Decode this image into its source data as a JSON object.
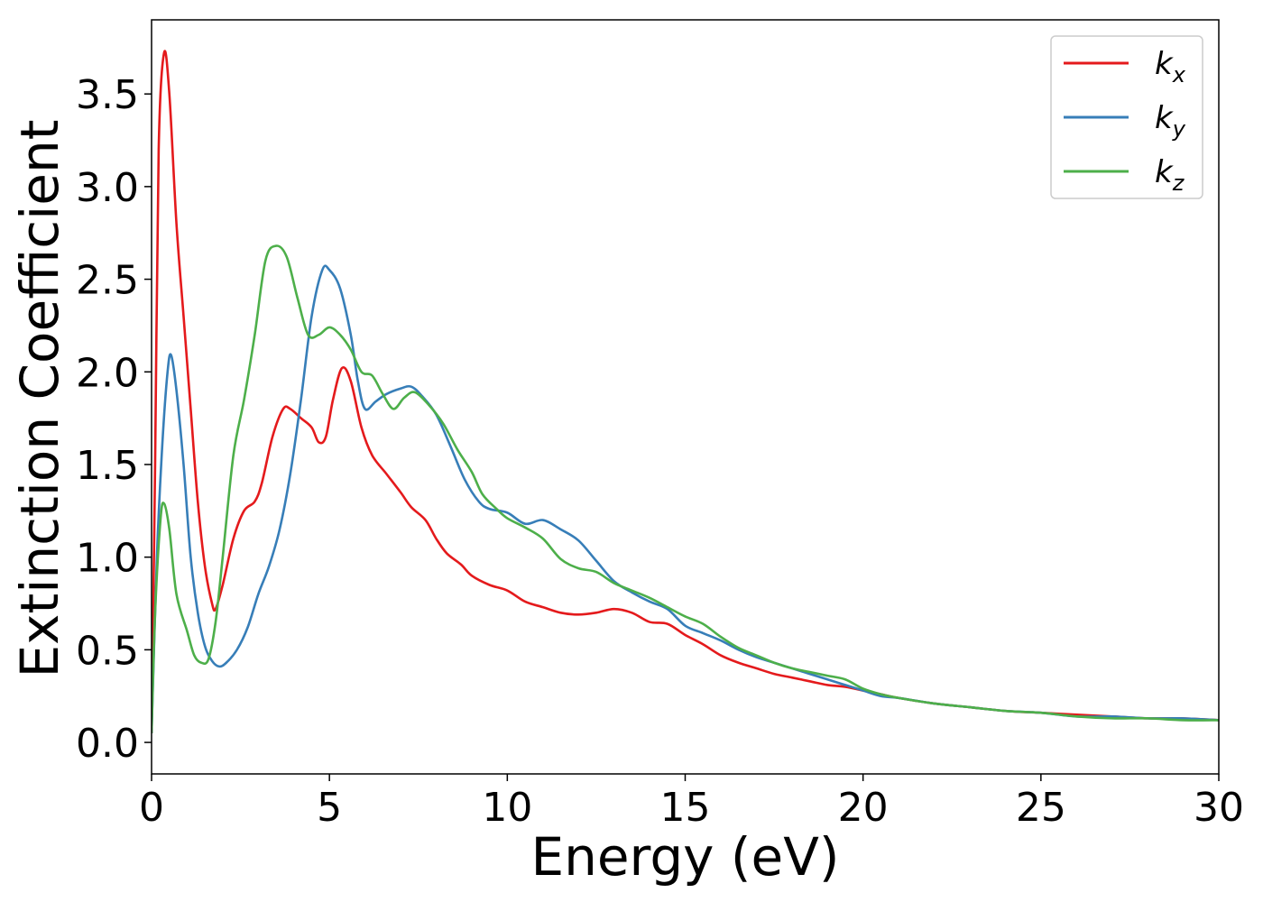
{
  "chart_data": {
    "type": "line",
    "xlabel": "Energy (eV)",
    "ylabel": "Extinction Coefficient",
    "xlim": [
      0,
      30
    ],
    "ylim": [
      -0.17,
      3.9
    ],
    "xticks": [
      0,
      5,
      10,
      15,
      20,
      25,
      30
    ],
    "yticks": [
      0.0,
      0.5,
      1.0,
      1.5,
      2.0,
      2.5,
      3.0,
      3.5
    ],
    "xtick_labels": [
      "0",
      "5",
      "10",
      "15",
      "20",
      "25",
      "30"
    ],
    "ytick_labels": [
      "0.0",
      "0.5",
      "1.0",
      "1.5",
      "2.0",
      "2.5",
      "3.0",
      "3.5"
    ],
    "grid": false,
    "legend_position": "top-right",
    "series": [
      {
        "name": "k_x",
        "label_base": "k",
        "label_sub": "x",
        "color": "#e41a1c",
        "points": [
          [
            0,
            0.05
          ],
          [
            0.1,
            1.5
          ],
          [
            0.2,
            3.2
          ],
          [
            0.35,
            3.72
          ],
          [
            0.5,
            3.5
          ],
          [
            0.7,
            2.8
          ],
          [
            0.9,
            2.3
          ],
          [
            1.1,
            1.8
          ],
          [
            1.3,
            1.3
          ],
          [
            1.5,
            0.95
          ],
          [
            1.7,
            0.75
          ],
          [
            1.8,
            0.72
          ],
          [
            2.0,
            0.85
          ],
          [
            2.3,
            1.1
          ],
          [
            2.6,
            1.25
          ],
          [
            2.9,
            1.3
          ],
          [
            3.1,
            1.4
          ],
          [
            3.4,
            1.65
          ],
          [
            3.7,
            1.8
          ],
          [
            3.9,
            1.8
          ],
          [
            4.2,
            1.75
          ],
          [
            4.5,
            1.7
          ],
          [
            4.7,
            1.62
          ],
          [
            4.9,
            1.65
          ],
          [
            5.1,
            1.85
          ],
          [
            5.35,
            2.02
          ],
          [
            5.6,
            1.95
          ],
          [
            5.9,
            1.7
          ],
          [
            6.2,
            1.55
          ],
          [
            6.6,
            1.45
          ],
          [
            7.0,
            1.35
          ],
          [
            7.3,
            1.27
          ],
          [
            7.7,
            1.2
          ],
          [
            8.0,
            1.1
          ],
          [
            8.3,
            1.02
          ],
          [
            8.7,
            0.96
          ],
          [
            9.0,
            0.9
          ],
          [
            9.5,
            0.85
          ],
          [
            10.0,
            0.82
          ],
          [
            10.5,
            0.76
          ],
          [
            11.0,
            0.73
          ],
          [
            11.5,
            0.7
          ],
          [
            12.0,
            0.69
          ],
          [
            12.5,
            0.7
          ],
          [
            13.0,
            0.72
          ],
          [
            13.5,
            0.7
          ],
          [
            14.0,
            0.65
          ],
          [
            14.5,
            0.64
          ],
          [
            15.0,
            0.58
          ],
          [
            15.5,
            0.53
          ],
          [
            16.0,
            0.47
          ],
          [
            16.5,
            0.43
          ],
          [
            17.0,
            0.4
          ],
          [
            17.5,
            0.37
          ],
          [
            18.0,
            0.35
          ],
          [
            18.5,
            0.33
          ],
          [
            19.0,
            0.31
          ],
          [
            19.5,
            0.3
          ],
          [
            20.0,
            0.28
          ],
          [
            20.5,
            0.26
          ],
          [
            21.0,
            0.24
          ],
          [
            22.0,
            0.21
          ],
          [
            23.0,
            0.19
          ],
          [
            24.0,
            0.17
          ],
          [
            25.0,
            0.16
          ],
          [
            26.0,
            0.15
          ],
          [
            27.0,
            0.14
          ],
          [
            28.0,
            0.13
          ],
          [
            29.0,
            0.13
          ],
          [
            30.0,
            0.12
          ]
        ]
      },
      {
        "name": "k_y",
        "label_base": "k",
        "label_sub": "y",
        "color": "#377eb8",
        "points": [
          [
            0,
            0.05
          ],
          [
            0.15,
            1.0
          ],
          [
            0.3,
            1.6
          ],
          [
            0.45,
            2.0
          ],
          [
            0.55,
            2.09
          ],
          [
            0.7,
            1.9
          ],
          [
            0.9,
            1.5
          ],
          [
            1.1,
            1.0
          ],
          [
            1.3,
            0.7
          ],
          [
            1.5,
            0.52
          ],
          [
            1.7,
            0.44
          ],
          [
            1.9,
            0.41
          ],
          [
            2.1,
            0.43
          ],
          [
            2.4,
            0.5
          ],
          [
            2.7,
            0.62
          ],
          [
            3.0,
            0.8
          ],
          [
            3.3,
            0.95
          ],
          [
            3.6,
            1.15
          ],
          [
            3.9,
            1.45
          ],
          [
            4.2,
            1.85
          ],
          [
            4.5,
            2.3
          ],
          [
            4.8,
            2.55
          ],
          [
            5.0,
            2.55
          ],
          [
            5.3,
            2.45
          ],
          [
            5.6,
            2.2
          ],
          [
            5.8,
            1.95
          ],
          [
            6.0,
            1.8
          ],
          [
            6.3,
            1.84
          ],
          [
            6.6,
            1.88
          ],
          [
            7.0,
            1.91
          ],
          [
            7.3,
            1.92
          ],
          [
            7.6,
            1.87
          ],
          [
            8.0,
            1.77
          ],
          [
            8.4,
            1.6
          ],
          [
            8.8,
            1.42
          ],
          [
            9.2,
            1.3
          ],
          [
            9.5,
            1.26
          ],
          [
            10.0,
            1.24
          ],
          [
            10.5,
            1.18
          ],
          [
            11.0,
            1.2
          ],
          [
            11.5,
            1.15
          ],
          [
            12.0,
            1.09
          ],
          [
            12.5,
            0.98
          ],
          [
            13.0,
            0.87
          ],
          [
            13.5,
            0.81
          ],
          [
            14.0,
            0.76
          ],
          [
            14.5,
            0.72
          ],
          [
            15.0,
            0.63
          ],
          [
            15.5,
            0.59
          ],
          [
            16.0,
            0.55
          ],
          [
            16.5,
            0.5
          ],
          [
            17.0,
            0.46
          ],
          [
            17.5,
            0.43
          ],
          [
            18.0,
            0.4
          ],
          [
            18.5,
            0.37
          ],
          [
            19.0,
            0.34
          ],
          [
            19.5,
            0.31
          ],
          [
            20.0,
            0.28
          ],
          [
            20.5,
            0.25
          ],
          [
            21.0,
            0.24
          ],
          [
            22.0,
            0.21
          ],
          [
            23.0,
            0.19
          ],
          [
            24.0,
            0.17
          ],
          [
            25.0,
            0.16
          ],
          [
            26.0,
            0.14
          ],
          [
            27.0,
            0.14
          ],
          [
            28.0,
            0.13
          ],
          [
            29.0,
            0.13
          ],
          [
            30.0,
            0.12
          ]
        ]
      },
      {
        "name": "k_z",
        "label_base": "k",
        "label_sub": "z",
        "color": "#4daf4a",
        "points": [
          [
            0,
            0.05
          ],
          [
            0.1,
            0.7
          ],
          [
            0.25,
            1.2
          ],
          [
            0.35,
            1.29
          ],
          [
            0.5,
            1.15
          ],
          [
            0.7,
            0.8
          ],
          [
            1.0,
            0.6
          ],
          [
            1.2,
            0.47
          ],
          [
            1.4,
            0.43
          ],
          [
            1.6,
            0.45
          ],
          [
            1.8,
            0.65
          ],
          [
            2.0,
            1.0
          ],
          [
            2.3,
            1.55
          ],
          [
            2.6,
            1.85
          ],
          [
            2.9,
            2.2
          ],
          [
            3.2,
            2.6
          ],
          [
            3.5,
            2.68
          ],
          [
            3.8,
            2.62
          ],
          [
            4.1,
            2.4
          ],
          [
            4.4,
            2.2
          ],
          [
            4.7,
            2.2
          ],
          [
            5.0,
            2.24
          ],
          [
            5.3,
            2.2
          ],
          [
            5.6,
            2.12
          ],
          [
            5.9,
            2.0
          ],
          [
            6.2,
            1.98
          ],
          [
            6.5,
            1.88
          ],
          [
            6.8,
            1.8
          ],
          [
            7.1,
            1.86
          ],
          [
            7.4,
            1.89
          ],
          [
            7.8,
            1.82
          ],
          [
            8.2,
            1.72
          ],
          [
            8.6,
            1.58
          ],
          [
            9.0,
            1.46
          ],
          [
            9.3,
            1.34
          ],
          [
            9.7,
            1.26
          ],
          [
            10.0,
            1.21
          ],
          [
            10.5,
            1.16
          ],
          [
            11.0,
            1.1
          ],
          [
            11.5,
            0.99
          ],
          [
            12.0,
            0.94
          ],
          [
            12.5,
            0.92
          ],
          [
            13.0,
            0.86
          ],
          [
            13.5,
            0.82
          ],
          [
            14.0,
            0.78
          ],
          [
            14.5,
            0.73
          ],
          [
            15.0,
            0.68
          ],
          [
            15.5,
            0.64
          ],
          [
            16.0,
            0.57
          ],
          [
            16.5,
            0.51
          ],
          [
            17.0,
            0.47
          ],
          [
            17.5,
            0.43
          ],
          [
            18.0,
            0.4
          ],
          [
            18.5,
            0.38
          ],
          [
            19.0,
            0.36
          ],
          [
            19.5,
            0.34
          ],
          [
            20.0,
            0.29
          ],
          [
            20.5,
            0.26
          ],
          [
            21.0,
            0.24
          ],
          [
            22.0,
            0.21
          ],
          [
            23.0,
            0.19
          ],
          [
            24.0,
            0.17
          ],
          [
            25.0,
            0.16
          ],
          [
            26.0,
            0.14
          ],
          [
            27.0,
            0.13
          ],
          [
            28.0,
            0.13
          ],
          [
            29.0,
            0.12
          ],
          [
            30.0,
            0.12
          ]
        ]
      }
    ]
  }
}
